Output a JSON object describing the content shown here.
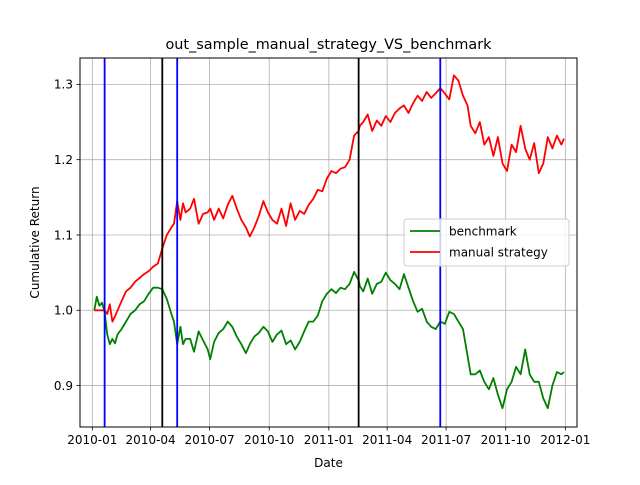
{
  "chart_data": {
    "type": "line",
    "title": "out_sample_manual_strategy_VS_benchmark",
    "xlabel": "Date",
    "ylabel": "Cumulative Return",
    "xlim": [
      "2009-12-13",
      "2012-01-19"
    ],
    "ylim": [
      0.845,
      1.335
    ],
    "grid": true,
    "legend_position": "center-right",
    "x_ticks": [
      {
        "date": "2010-01-01",
        "label": "2010-01"
      },
      {
        "date": "2010-04-01",
        "label": "2010-04"
      },
      {
        "date": "2010-07-01",
        "label": "2010-07"
      },
      {
        "date": "2010-10-01",
        "label": "2010-10"
      },
      {
        "date": "2011-01-01",
        "label": "2011-01"
      },
      {
        "date": "2011-04-01",
        "label": "2011-04"
      },
      {
        "date": "2011-07-01",
        "label": "2011-07"
      },
      {
        "date": "2011-10-01",
        "label": "2011-10"
      },
      {
        "date": "2012-01-01",
        "label": "2012-01"
      }
    ],
    "y_ticks": [
      {
        "value": 0.9,
        "label": "0.9"
      },
      {
        "value": 1.0,
        "label": "1.0"
      },
      {
        "value": 1.1,
        "label": "1.1"
      },
      {
        "value": 1.2,
        "label": "1.2"
      },
      {
        "value": 1.3,
        "label": "1.3"
      }
    ],
    "series": [
      {
        "name": "benchmark",
        "color": "#008000",
        "x": [
          "2010-01-04",
          "2010-01-08",
          "2010-01-12",
          "2010-01-16",
          "2010-01-20",
          "2010-01-24",
          "2010-01-28",
          "2010-02-01",
          "2010-02-05",
          "2010-02-09",
          "2010-02-15",
          "2010-02-22",
          "2010-03-01",
          "2010-03-08",
          "2010-03-15",
          "2010-03-22",
          "2010-03-29",
          "2010-04-05",
          "2010-04-12",
          "2010-04-19",
          "2010-04-26",
          "2010-05-03",
          "2010-05-07",
          "2010-05-12",
          "2010-05-17",
          "2010-05-21",
          "2010-05-25",
          "2010-06-01",
          "2010-06-07",
          "2010-06-14",
          "2010-06-21",
          "2010-06-28",
          "2010-07-02",
          "2010-07-08",
          "2010-07-15",
          "2010-07-22",
          "2010-07-29",
          "2010-08-05",
          "2010-08-12",
          "2010-08-19",
          "2010-08-26",
          "2010-09-01",
          "2010-09-08",
          "2010-09-15",
          "2010-09-22",
          "2010-09-29",
          "2010-10-06",
          "2010-10-13",
          "2010-10-20",
          "2010-10-27",
          "2010-11-03",
          "2010-11-10",
          "2010-11-17",
          "2010-11-24",
          "2010-12-01",
          "2010-12-08",
          "2010-12-15",
          "2010-12-22",
          "2010-12-29",
          "2011-01-05",
          "2011-01-12",
          "2011-01-19",
          "2011-01-26",
          "2011-02-02",
          "2011-02-09",
          "2011-02-16",
          "2011-02-18",
          "2011-02-23",
          "2011-03-02",
          "2011-03-09",
          "2011-03-16",
          "2011-03-23",
          "2011-03-30",
          "2011-04-06",
          "2011-04-13",
          "2011-04-20",
          "2011-04-27",
          "2011-05-04",
          "2011-05-11",
          "2011-05-18",
          "2011-05-25",
          "2011-06-01",
          "2011-06-08",
          "2011-06-15",
          "2011-06-22",
          "2011-06-29",
          "2011-07-06",
          "2011-07-13",
          "2011-07-20",
          "2011-07-27",
          "2011-08-03",
          "2011-08-08",
          "2011-08-15",
          "2011-08-22",
          "2011-08-29",
          "2011-09-05",
          "2011-09-12",
          "2011-09-19",
          "2011-09-26",
          "2011-10-03",
          "2011-10-10",
          "2011-10-17",
          "2011-10-24",
          "2011-10-31",
          "2011-11-07",
          "2011-11-14",
          "2011-11-21",
          "2011-11-28",
          "2011-12-05",
          "2011-12-12",
          "2011-12-19",
          "2011-12-26",
          "2011-12-30"
        ],
        "values": [
          1.0,
          1.018,
          1.006,
          1.01,
          0.998,
          0.968,
          0.955,
          0.962,
          0.956,
          0.968,
          0.975,
          0.985,
          0.995,
          1.0,
          1.008,
          1.012,
          1.022,
          1.03,
          1.03,
          1.028,
          1.015,
          0.995,
          0.985,
          0.955,
          0.978,
          0.955,
          0.962,
          0.962,
          0.945,
          0.972,
          0.96,
          0.948,
          0.935,
          0.958,
          0.97,
          0.975,
          0.985,
          0.978,
          0.965,
          0.955,
          0.943,
          0.955,
          0.965,
          0.97,
          0.978,
          0.972,
          0.958,
          0.968,
          0.973,
          0.955,
          0.96,
          0.948,
          0.958,
          0.972,
          0.985,
          0.985,
          0.993,
          1.012,
          1.022,
          1.028,
          1.023,
          1.03,
          1.028,
          1.035,
          1.051,
          1.04,
          1.032,
          1.025,
          1.042,
          1.022,
          1.035,
          1.038,
          1.05,
          1.04,
          1.035,
          1.028,
          1.048,
          1.03,
          1.012,
          0.998,
          1.002,
          0.985,
          0.978,
          0.975,
          0.985,
          0.982,
          0.998,
          0.995,
          0.985,
          0.975,
          0.94,
          0.915,
          0.915,
          0.92,
          0.905,
          0.895,
          0.91,
          0.888,
          0.87,
          0.895,
          0.905,
          0.925,
          0.915,
          0.948,
          0.915,
          0.905,
          0.905,
          0.883,
          0.87,
          0.9,
          0.918,
          0.915,
          0.918
        ]
      },
      {
        "name": "manual strategy",
        "color": "#ff0000",
        "x": [
          "2010-01-04",
          "2010-01-12",
          "2010-01-20",
          "2010-01-24",
          "2010-01-28",
          "2010-02-01",
          "2010-02-05",
          "2010-02-09",
          "2010-02-15",
          "2010-02-22",
          "2010-03-01",
          "2010-03-08",
          "2010-03-15",
          "2010-03-22",
          "2010-03-29",
          "2010-04-05",
          "2010-04-12",
          "2010-04-19",
          "2010-04-26",
          "2010-05-03",
          "2010-05-07",
          "2010-05-12",
          "2010-05-17",
          "2010-05-21",
          "2010-05-25",
          "2010-06-01",
          "2010-06-07",
          "2010-06-14",
          "2010-06-21",
          "2010-06-28",
          "2010-07-02",
          "2010-07-08",
          "2010-07-15",
          "2010-07-22",
          "2010-07-29",
          "2010-08-05",
          "2010-08-12",
          "2010-08-19",
          "2010-08-26",
          "2010-09-01",
          "2010-09-08",
          "2010-09-15",
          "2010-09-22",
          "2010-09-29",
          "2010-10-06",
          "2010-10-13",
          "2010-10-20",
          "2010-10-27",
          "2010-11-03",
          "2010-11-10",
          "2010-11-17",
          "2010-11-24",
          "2010-12-01",
          "2010-12-08",
          "2010-12-15",
          "2010-12-22",
          "2010-12-29",
          "2011-01-05",
          "2011-01-12",
          "2011-01-19",
          "2011-01-26",
          "2011-02-02",
          "2011-02-09",
          "2011-02-16",
          "2011-02-18",
          "2011-02-23",
          "2011-03-02",
          "2011-03-09",
          "2011-03-16",
          "2011-03-23",
          "2011-03-30",
          "2011-04-06",
          "2011-04-13",
          "2011-04-20",
          "2011-04-27",
          "2011-05-04",
          "2011-05-11",
          "2011-05-18",
          "2011-05-25",
          "2011-06-01",
          "2011-06-08",
          "2011-06-15",
          "2011-06-22",
          "2011-06-29",
          "2011-07-06",
          "2011-07-13",
          "2011-07-20",
          "2011-07-27",
          "2011-08-03",
          "2011-08-08",
          "2011-08-15",
          "2011-08-22",
          "2011-08-29",
          "2011-09-05",
          "2011-09-12",
          "2011-09-19",
          "2011-09-26",
          "2011-10-03",
          "2011-10-10",
          "2011-10-17",
          "2011-10-24",
          "2011-10-31",
          "2011-11-07",
          "2011-11-14",
          "2011-11-21",
          "2011-11-28",
          "2011-12-05",
          "2011-12-12",
          "2011-12-19",
          "2011-12-26",
          "2011-12-30"
        ],
        "values": [
          1.0,
          1.0,
          1.0,
          0.995,
          1.008,
          0.985,
          0.992,
          1.0,
          1.012,
          1.025,
          1.03,
          1.038,
          1.043,
          1.048,
          1.052,
          1.058,
          1.062,
          1.082,
          1.1,
          1.11,
          1.115,
          1.145,
          1.12,
          1.142,
          1.13,
          1.135,
          1.148,
          1.115,
          1.128,
          1.13,
          1.135,
          1.12,
          1.135,
          1.122,
          1.14,
          1.152,
          1.135,
          1.12,
          1.11,
          1.098,
          1.11,
          1.125,
          1.145,
          1.13,
          1.12,
          1.115,
          1.135,
          1.112,
          1.142,
          1.12,
          1.132,
          1.128,
          1.14,
          1.148,
          1.16,
          1.158,
          1.175,
          1.185,
          1.182,
          1.188,
          1.19,
          1.2,
          1.232,
          1.238,
          1.245,
          1.25,
          1.26,
          1.238,
          1.252,
          1.245,
          1.258,
          1.25,
          1.262,
          1.268,
          1.272,
          1.262,
          1.275,
          1.285,
          1.278,
          1.29,
          1.282,
          1.288,
          1.295,
          1.288,
          1.28,
          1.312,
          1.305,
          1.285,
          1.272,
          1.245,
          1.235,
          1.25,
          1.22,
          1.23,
          1.205,
          1.23,
          1.195,
          1.185,
          1.22,
          1.21,
          1.245,
          1.215,
          1.2,
          1.222,
          1.182,
          1.195,
          1.23,
          1.215,
          1.232,
          1.22,
          1.228
        ]
      }
    ],
    "vlines": [
      {
        "date": "2010-01-20",
        "color": "#0000ff"
      },
      {
        "date": "2010-04-19",
        "color": "#000000"
      },
      {
        "date": "2010-05-12",
        "color": "#0000ff"
      },
      {
        "date": "2011-02-16",
        "color": "#000000"
      },
      {
        "date": "2011-06-22",
        "color": "#0000ff"
      }
    ]
  }
}
